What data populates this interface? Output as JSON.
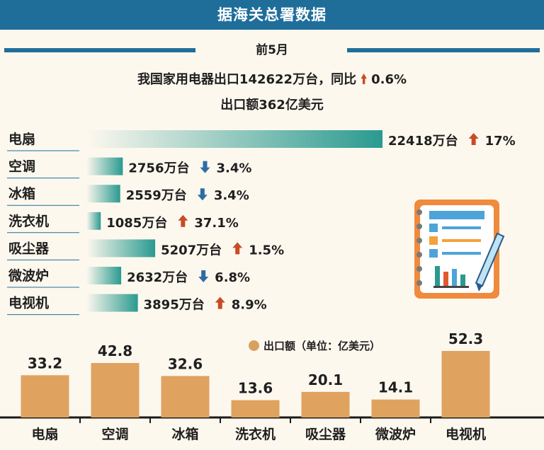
{
  "header": {
    "title": "据海关总署数据"
  },
  "period": "前5月",
  "summary": {
    "line1_prefix": "我国家用电器出口142622万台，同比",
    "line1_change": "0.6%",
    "line2": "出口额362亿美元"
  },
  "colors": {
    "up": "#c84b26",
    "down": "#2e6ca4",
    "accent": "#1f6e9a",
    "bar_export": "#e0a25f"
  },
  "chart_data": [
    {
      "type": "bar",
      "orientation": "horizontal",
      "categories": [
        "电扇",
        "空调",
        "冰箱",
        "洗衣机",
        "吸尘器",
        "微波炉",
        "电视机"
      ],
      "values": [
        22418,
        2756,
        2559,
        1085,
        5207,
        2632,
        3895
      ],
      "value_labels": [
        "22418万台",
        "2756万台",
        "2559万台",
        "1085万台",
        "5207万台",
        "2632万台",
        "3895万台"
      ],
      "changes": [
        "17%",
        "3.4%",
        "3.4%",
        "37.1%",
        "1.5%",
        "6.8%",
        "8.9%"
      ],
      "directions": [
        "up",
        "down",
        "down",
        "up",
        "up",
        "down",
        "up"
      ]
    },
    {
      "type": "bar",
      "title": "出口额（单位：亿美元）",
      "categories": [
        "电扇",
        "空调",
        "冰箱",
        "洗衣机",
        "吸尘器",
        "微波炉",
        "电视机"
      ],
      "values": [
        33.2,
        42.8,
        32.6,
        13.6,
        20.1,
        14.1,
        52.3
      ],
      "value_labels": [
        "33.2",
        "42.8",
        "32.6",
        "13.6",
        "20.1",
        "14.1",
        "52.3"
      ]
    }
  ]
}
